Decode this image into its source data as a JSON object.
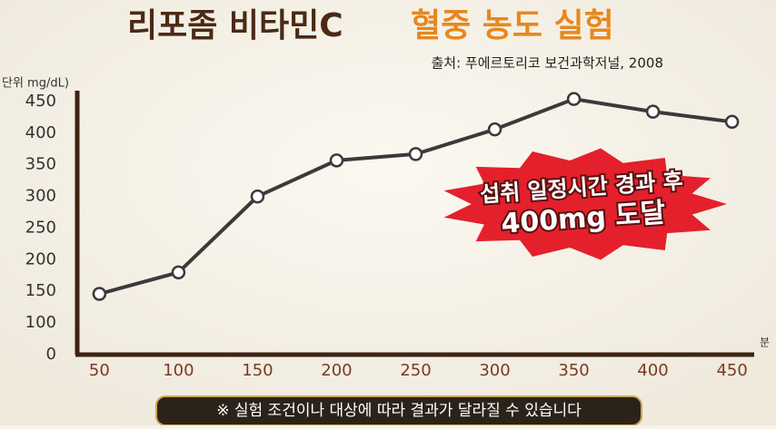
{
  "chart_data": {
    "type": "line",
    "title": [
      "리포좀 비타민C",
      "혈중 농도 실험"
    ],
    "subtitle": "출처: 푸에르토리코 보건과학저널, 2008",
    "y_label": "단위 mg/dL)",
    "x_label": "분",
    "annotations": [
      "섭취 일정시간 경과 후",
      "400mg 도달"
    ],
    "note": "※ 실험 조건이나 대상에 따라 결과가 달라질 수 있습니다",
    "x": [
      50,
      100,
      150,
      200,
      250,
      300,
      350,
      400,
      450
    ],
    "series": [
      {
        "color": "#3a3a3a",
        "values": [
          146,
          180,
          300,
          357,
          367,
          406,
          454,
          434,
          418
        ]
      }
    ],
    "xlim": [
      36,
      464
    ],
    "ylim": [
      50,
      460
    ],
    "xticks": [
      50,
      100,
      150,
      200,
      250,
      300,
      350,
      400,
      450
    ],
    "yticks": [
      {
        "value": 50,
        "label": "0"
      },
      100,
      150,
      200,
      250,
      300,
      350,
      400,
      450
    ],
    "grid": false
  }
}
